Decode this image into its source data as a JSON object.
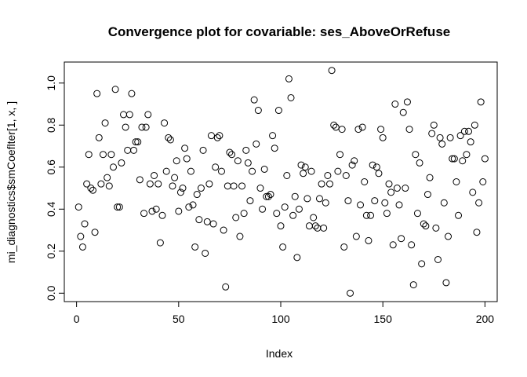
{
  "chart_data": {
    "type": "scatter",
    "title": "Convergence plot for covariable:   ses_AboveOrRefuse",
    "xlabel": "Index",
    "ylabel": "mi_diagnostics$smCoeflter[1, x, ]",
    "xlim": [
      -6,
      206
    ],
    "ylim": [
      -0.04,
      1.1
    ],
    "x_ticks": [
      0,
      50,
      100,
      150,
      200
    ],
    "x_tick_labels": [
      "0",
      "50",
      "100",
      "150",
      "200"
    ],
    "y_ticks": [
      0.0,
      0.2,
      0.4,
      0.6,
      0.8,
      1.0
    ],
    "y_tick_labels": [
      "0.0",
      "0.2",
      "0.4",
      "0.6",
      "0.8",
      "1.0"
    ],
    "grid": false,
    "marker": "open-circle",
    "x": [
      1,
      2,
      3,
      4,
      5,
      6,
      7,
      8,
      9,
      10,
      11,
      12,
      13,
      14,
      15,
      16,
      17,
      18,
      19,
      20,
      21,
      22,
      23,
      24,
      25,
      26,
      27,
      28,
      29,
      30,
      31,
      32,
      33,
      34,
      35,
      36,
      37,
      38,
      39,
      40,
      41,
      42,
      43,
      44,
      45,
      46,
      47,
      48,
      49,
      50,
      51,
      52,
      53,
      54,
      55,
      56,
      57,
      58,
      59,
      60,
      61,
      62,
      63,
      64,
      65,
      66,
      67,
      68,
      69,
      70,
      71,
      72,
      73,
      74,
      75,
      76,
      77,
      78,
      79,
      80,
      81,
      82,
      83,
      84,
      85,
      86,
      87,
      88,
      89,
      90,
      91,
      92,
      93,
      94,
      95,
      96,
      97,
      98,
      99,
      100,
      101,
      102,
      103,
      104,
      105,
      106,
      107,
      108,
      109,
      110,
      111,
      112,
      113,
      114,
      115,
      116,
      117,
      118,
      119,
      120,
      121,
      122,
      123,
      124,
      125,
      126,
      127,
      128,
      129,
      130,
      131,
      132,
      133,
      134,
      135,
      136,
      137,
      138,
      139,
      140,
      141,
      142,
      143,
      144,
      145,
      146,
      147,
      148,
      149,
      150,
      151,
      152,
      153,
      154,
      155,
      156,
      157,
      158,
      159,
      160,
      161,
      162,
      163,
      164,
      165,
      166,
      167,
      168,
      169,
      170,
      171,
      172,
      173,
      174,
      175,
      176,
      177,
      178,
      179,
      180,
      181,
      182,
      183,
      184,
      185,
      186,
      187,
      188,
      189,
      190,
      191,
      192,
      193,
      194,
      195,
      196,
      197,
      198,
      199,
      200
    ],
    "y": [
      0.41,
      0.27,
      0.22,
      0.33,
      0.52,
      0.66,
      0.5,
      0.49,
      0.29,
      0.95,
      0.74,
      0.52,
      0.66,
      0.81,
      0.55,
      0.51,
      0.66,
      0.6,
      0.97,
      0.41,
      0.41,
      0.62,
      0.85,
      0.79,
      0.68,
      0.85,
      0.95,
      0.68,
      0.72,
      0.72,
      0.54,
      0.79,
      0.38,
      0.79,
      0.85,
      0.52,
      0.39,
      0.56,
      0.4,
      0.52,
      0.24,
      0.37,
      0.81,
      0.58,
      0.74,
      0.73,
      0.51,
      0.55,
      0.63,
      0.39,
      0.48,
      0.5,
      0.69,
      0.64,
      0.41,
      0.58,
      0.42,
      0.22,
      0.47,
      0.35,
      0.5,
      0.68,
      0.19,
      0.34,
      0.52,
      0.75,
      0.33,
      0.6,
      0.74,
      0.75,
      0.58,
      0.3,
      0.03,
      0.51,
      0.67,
      0.66,
      0.51,
      0.36,
      0.63,
      0.27,
      0.51,
      0.38,
      0.68,
      0.62,
      0.44,
      0.58,
      0.92,
      0.71,
      0.87,
      0.5,
      0.4,
      0.59,
      0.46,
      0.46,
      0.47,
      0.75,
      0.69,
      0.38,
      0.87,
      0.32,
      0.22,
      0.41,
      0.56,
      1.02,
      0.93,
      0.37,
      0.46,
      0.17,
      0.4,
      0.61,
      0.57,
      0.6,
      0.45,
      0.32,
      0.58,
      0.36,
      0.32,
      0.31,
      0.45,
      0.52,
      0.31,
      0.43,
      0.56,
      0.52,
      1.06,
      0.8,
      0.79,
      0.58,
      0.66,
      0.78,
      0.22,
      0.56,
      0.44,
      0.0,
      0.61,
      0.63,
      0.27,
      0.78,
      0.42,
      0.79,
      0.53,
      0.37,
      0.25,
      0.37,
      0.61,
      0.44,
      0.6,
      0.57,
      0.78,
      0.74,
      0.43,
      0.38,
      0.52,
      0.48,
      0.23,
      0.9,
      0.5,
      0.42,
      0.26,
      0.86,
      0.5,
      0.91,
      0.78,
      0.23,
      0.04,
      0.66,
      0.38,
      0.62,
      0.14,
      0.33,
      0.32,
      0.47,
      0.55,
      0.76,
      0.8,
      0.31,
      0.16,
      0.74,
      0.71,
      0.43,
      0.05,
      0.27,
      0.74,
      0.64,
      0.64,
      0.53,
      0.37,
      0.75,
      0.63,
      0.77,
      0.66,
      0.77,
      0.72,
      0.48,
      0.8,
      0.29,
      0.43,
      0.91,
      0.53,
      0.64
    ]
  }
}
